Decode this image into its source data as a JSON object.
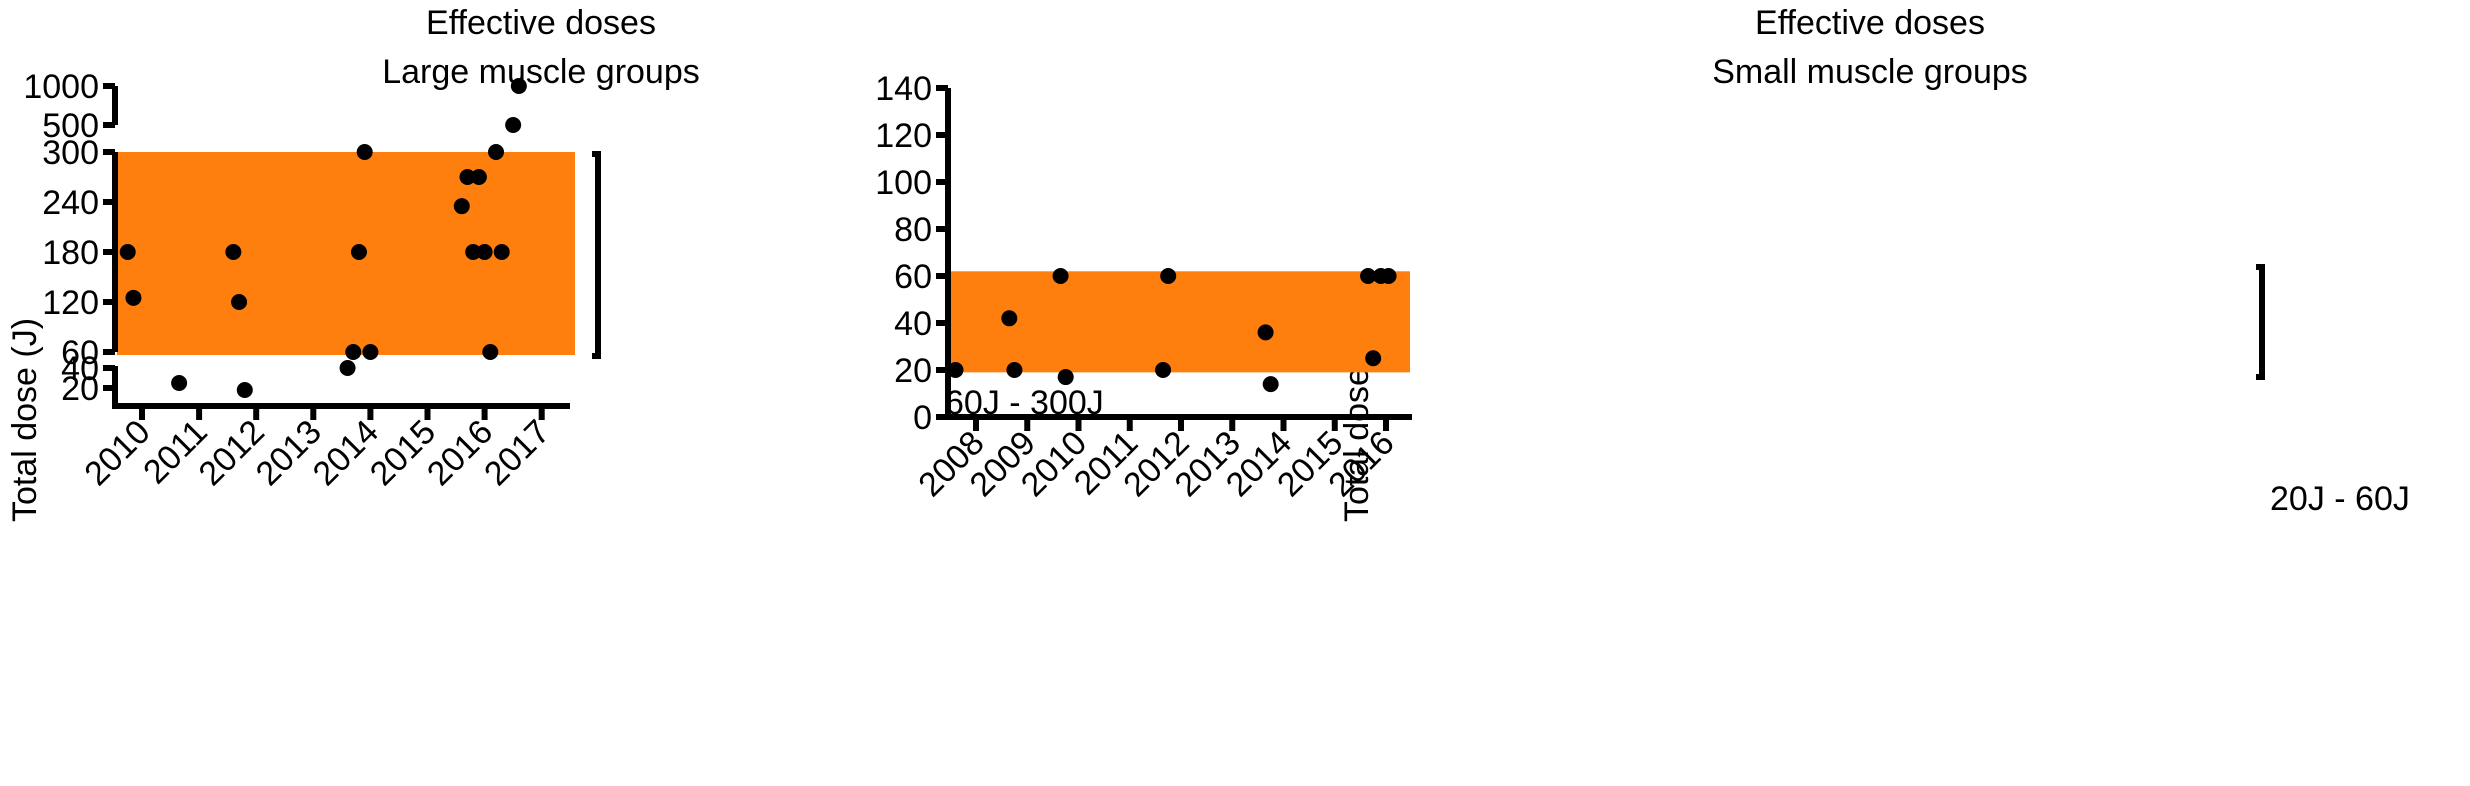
{
  "chart_data": [
    {
      "type": "scatter",
      "title": "Effective doses",
      "subtitle": "Large muscle groups",
      "xlabel": "",
      "ylabel": "Total dose (J)",
      "y_scale": "broken",
      "x_ticks": [
        "2010",
        "2011",
        "2012",
        "2013",
        "2014",
        "2015",
        "2016",
        "2017"
      ],
      "y_ticks_top": [
        "500",
        "1000"
      ],
      "y_ticks_mid": [
        "60",
        "120",
        "180",
        "240",
        "300"
      ],
      "y_ticks_low": [
        "20",
        "40"
      ],
      "band": {
        "from": 60,
        "to": 300,
        "color": "#FF7F0E"
      },
      "bracket_label": "60J - 300J",
      "points": [
        {
          "x": 2009.75,
          "y": 180
        },
        {
          "x": 2009.85,
          "y": 125
        },
        {
          "x": 2010.65,
          "y": 25
        },
        {
          "x": 2011.6,
          "y": 180
        },
        {
          "x": 2011.7,
          "y": 120
        },
        {
          "x": 2011.8,
          "y": 18
        },
        {
          "x": 2013.6,
          "y": 40
        },
        {
          "x": 2013.7,
          "y": 60
        },
        {
          "x": 2013.8,
          "y": 180
        },
        {
          "x": 2013.9,
          "y": 300
        },
        {
          "x": 2014.0,
          "y": 60
        },
        {
          "x": 2015.6,
          "y": 235
        },
        {
          "x": 2015.7,
          "y": 270
        },
        {
          "x": 2015.8,
          "y": 180
        },
        {
          "x": 2015.9,
          "y": 270
        },
        {
          "x": 2016.0,
          "y": 180
        },
        {
          "x": 2016.1,
          "y": 60
        },
        {
          "x": 2016.2,
          "y": 300
        },
        {
          "x": 2016.3,
          "y": 180
        },
        {
          "x": 2016.5,
          "y": 500
        },
        {
          "x": 2016.6,
          "y": 1000
        }
      ],
      "colors": {
        "points": "#000000",
        "axes": "#000000"
      }
    },
    {
      "type": "scatter",
      "title": "Effective doses",
      "subtitle": "Small muscle groups",
      "xlabel": "",
      "ylabel": "Total dose (J)",
      "ylim": [
        0,
        140
      ],
      "x_ticks": [
        "2008",
        "2009",
        "2010",
        "2011",
        "2012",
        "2013",
        "2014",
        "2015",
        "2016"
      ],
      "y_ticks": [
        "0",
        "20",
        "40",
        "60",
        "80",
        "100",
        "120",
        "140"
      ],
      "band": {
        "from": 19,
        "to": 62,
        "color": "#FF7F0E"
      },
      "bracket_label": "20J - 60J",
      "points": [
        {
          "x": 2007.6,
          "y": 20
        },
        {
          "x": 2008.65,
          "y": 42
        },
        {
          "x": 2008.75,
          "y": 20
        },
        {
          "x": 2009.65,
          "y": 60
        },
        {
          "x": 2009.75,
          "y": 17
        },
        {
          "x": 2011.65,
          "y": 20
        },
        {
          "x": 2011.75,
          "y": 60
        },
        {
          "x": 2013.65,
          "y": 36
        },
        {
          "x": 2013.75,
          "y": 14
        },
        {
          "x": 2015.65,
          "y": 60
        },
        {
          "x": 2015.75,
          "y": 25
        },
        {
          "x": 2015.9,
          "y": 60
        },
        {
          "x": 2016.05,
          "y": 60
        }
      ],
      "colors": {
        "points": "#000000",
        "axes": "#000000"
      }
    }
  ]
}
